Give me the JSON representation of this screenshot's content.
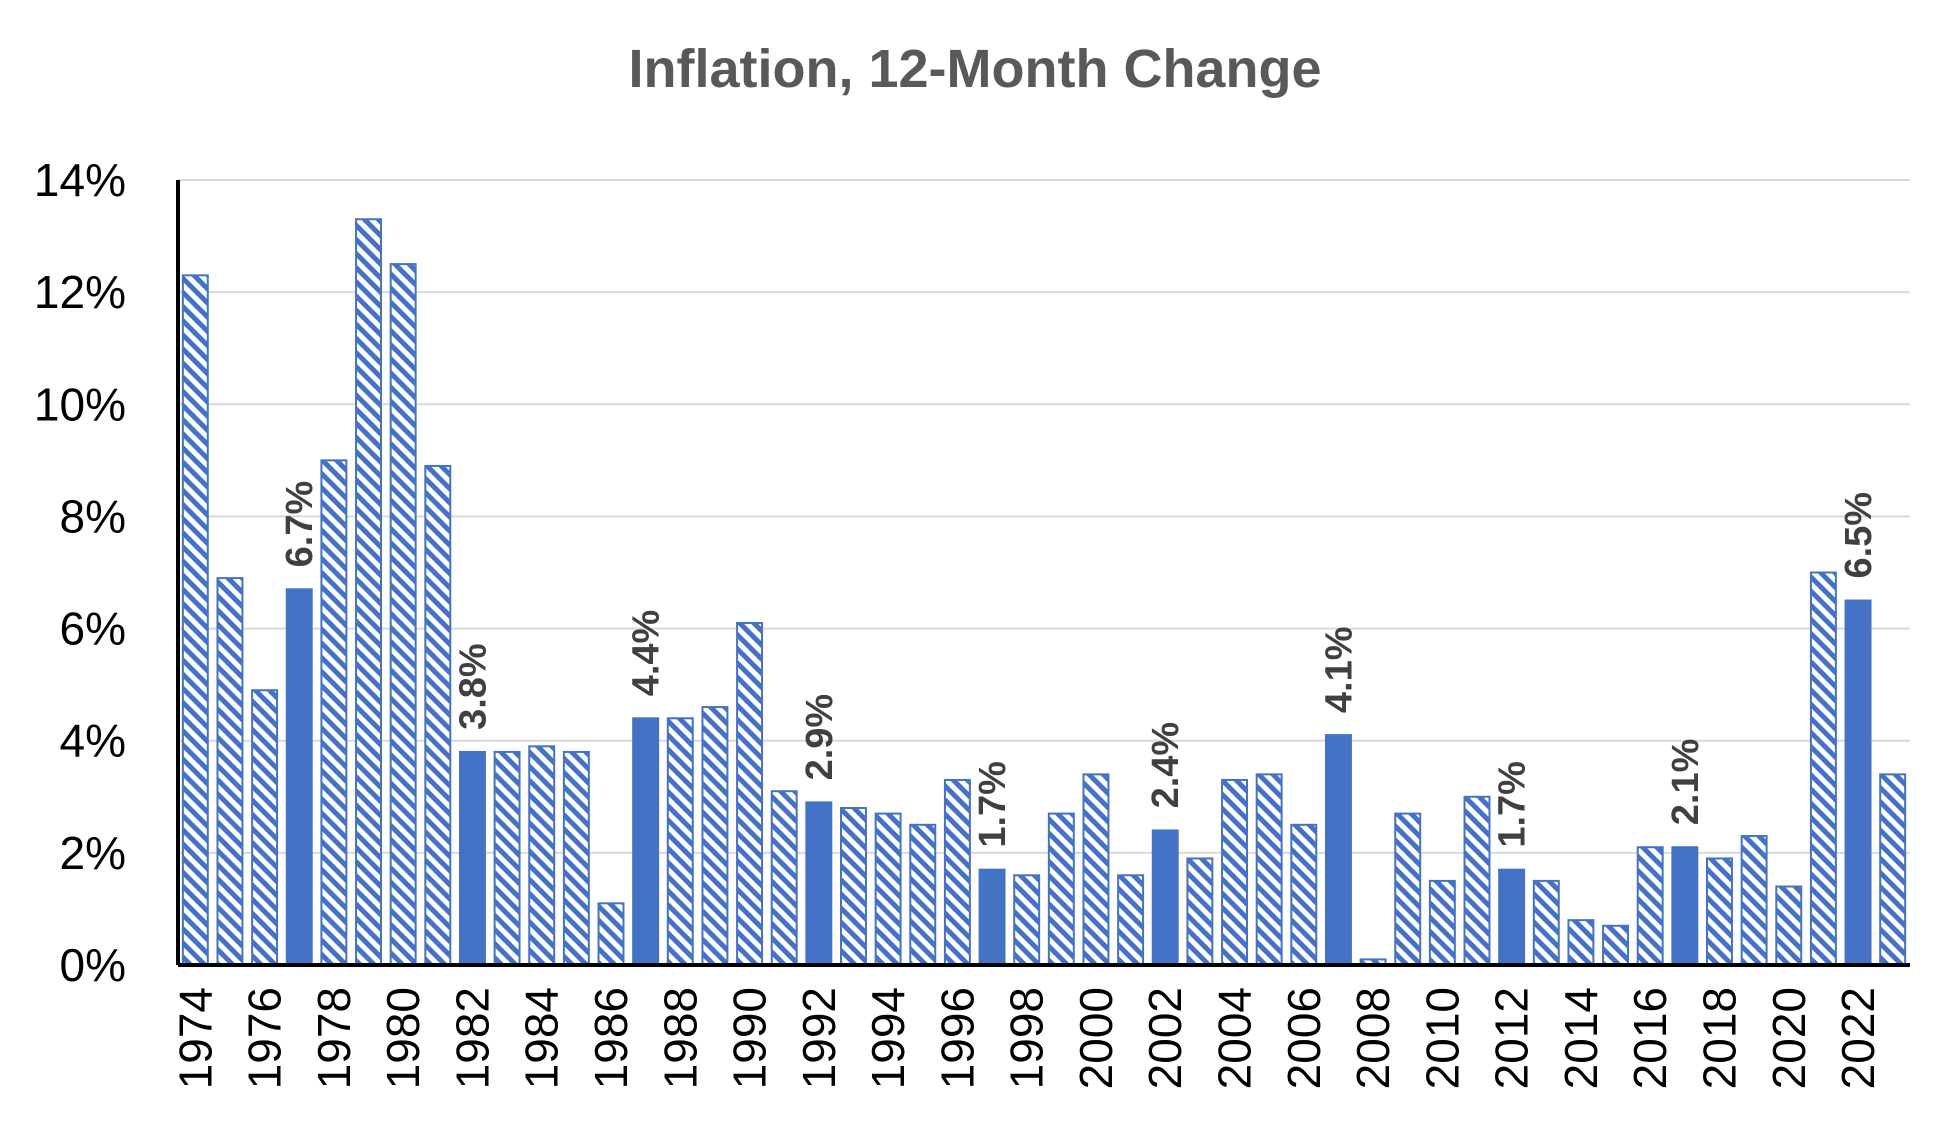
{
  "chart_data": {
    "type": "bar",
    "title": "Inflation, 12-Month Change",
    "xlabel": "",
    "ylabel": "",
    "ylim": [
      0,
      14
    ],
    "ytick_values": [
      0,
      2,
      4,
      6,
      8,
      10,
      12,
      14
    ],
    "ytick_labels": [
      "0%",
      "2%",
      "4%",
      "6%",
      "8%",
      "10%",
      "12%",
      "14%"
    ],
    "grid": "horizontal",
    "categories": [
      "1974",
      "1975",
      "1976",
      "1977",
      "1978",
      "1979",
      "1980",
      "1981",
      "1982",
      "1983",
      "1984",
      "1985",
      "1986",
      "1987",
      "1988",
      "1989",
      "1990",
      "1991",
      "1992",
      "1993",
      "1994",
      "1995",
      "1996",
      "1997",
      "1998",
      "1999",
      "2000",
      "2001",
      "2002",
      "2003",
      "2004",
      "2005",
      "2006",
      "2007",
      "2008",
      "2009",
      "2010",
      "2011",
      "2012",
      "2013",
      "2014",
      "2015",
      "2016",
      "2017",
      "2018",
      "2019",
      "2020",
      "2021",
      "2022",
      "2023"
    ],
    "x_tick_labels": [
      "1974",
      "1976",
      "1978",
      "1980",
      "1982",
      "1984",
      "1986",
      "1988",
      "1990",
      "1992",
      "1994",
      "1996",
      "1998",
      "2000",
      "2002",
      "2004",
      "2006",
      "2008",
      "2010",
      "2012",
      "2014",
      "2016",
      "2018",
      "2020",
      "2022"
    ],
    "values": [
      12.3,
      6.9,
      4.9,
      6.7,
      9.0,
      13.3,
      12.5,
      8.9,
      3.8,
      3.8,
      3.9,
      3.8,
      1.1,
      4.4,
      4.4,
      4.6,
      6.1,
      3.1,
      2.9,
      2.8,
      2.7,
      2.5,
      3.3,
      1.7,
      1.6,
      2.7,
      3.4,
      1.6,
      2.4,
      1.9,
      3.3,
      3.4,
      2.5,
      4.1,
      0.1,
      2.7,
      1.5,
      3.0,
      1.7,
      1.5,
      0.8,
      0.7,
      2.1,
      2.1,
      1.9,
      2.3,
      1.4,
      7.0,
      6.5,
      3.4
    ],
    "highlighted_categories": [
      "1977",
      "1982",
      "1987",
      "1992",
      "1997",
      "2002",
      "2007",
      "2012",
      "2017",
      "2022"
    ],
    "data_labels": [
      {
        "category": "1977",
        "text": "6.7%"
      },
      {
        "category": "1982",
        "text": "3.8%"
      },
      {
        "category": "1987",
        "text": "4.4%"
      },
      {
        "category": "1992",
        "text": "2.9%"
      },
      {
        "category": "1997",
        "text": "1.7%"
      },
      {
        "category": "2002",
        "text": "2.4%"
      },
      {
        "category": "2007",
        "text": "4.1%"
      },
      {
        "category": "2012",
        "text": "1.7%"
      },
      {
        "category": "2017",
        "text": "2.1%"
      },
      {
        "category": "2022",
        "text": "6.5%"
      }
    ],
    "colors": {
      "bar": "#4472c4",
      "grid": "#d9d9d9",
      "axis": "#000000",
      "label": "#404040"
    }
  }
}
